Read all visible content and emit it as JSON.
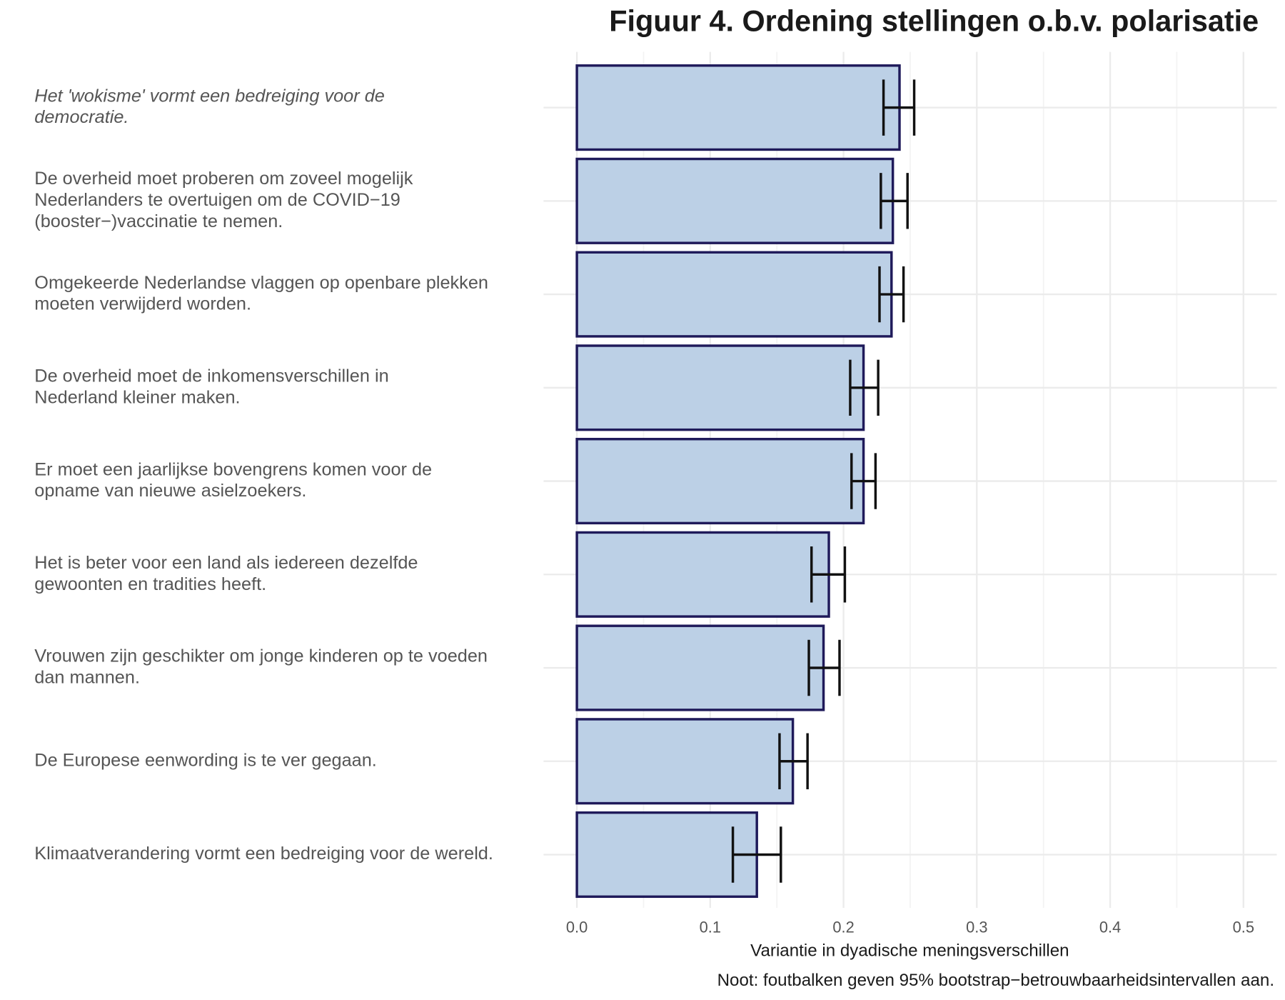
{
  "chart_data": {
    "type": "bar",
    "orientation": "horizontal",
    "title": "Figuur 4. Ordening stellingen o.b.v. polarisatie",
    "xlabel": "Variantie in dyadische meningsverschillen",
    "note": "Noot: foutbalken geven 95% bootstrap−betrouwbaarheidsintervallen aan.",
    "categories": [
      [
        "Het 'wokisme' vormt een bedreiging voor de",
        "democratie."
      ],
      [
        "De overheid moet proberen om zoveel mogelijk",
        "Nederlanders te overtuigen om de COVID−19",
        "(booster−)vaccinatie te nemen."
      ],
      [
        "Omgekeerde Nederlandse vlaggen op openbare plekken",
        "moeten verwijderd worden."
      ],
      [
        "De overheid moet de inkomensverschillen in",
        "Nederland kleiner maken."
      ],
      [
        "Er moet een jaarlijkse bovengrens komen voor de",
        "opname van nieuwe asielzoekers."
      ],
      [
        "Het is beter voor een land als iedereen dezelfde",
        "gewoonten en tradities heeft."
      ],
      [
        "Vrouwen zijn geschikter om jonge kinderen op te voeden",
        "dan mannen."
      ],
      [
        "De Europese eenwording is te ver gegaan."
      ],
      [
        "Klimaatverandering vormt een bedreiging voor de wereld."
      ]
    ],
    "italic_category": 0,
    "values": [
      0.242,
      0.237,
      0.236,
      0.215,
      0.215,
      0.189,
      0.185,
      0.162,
      0.135
    ],
    "lower": [
      0.23,
      0.228,
      0.227,
      0.205,
      0.206,
      0.176,
      0.174,
      0.152,
      0.117
    ],
    "upper": [
      0.253,
      0.248,
      0.245,
      0.226,
      0.224,
      0.201,
      0.197,
      0.173,
      0.153
    ],
    "color": "#bcd0e6",
    "edgecolor": "#1f1a5a",
    "xlim": [
      -0.025,
      0.525
    ],
    "xticks": [
      {
        "value": 0,
        "label": "0.0"
      },
      0.1,
      0.2,
      0.3,
      0.4,
      0.5
    ],
    "minor_xticks": [
      0.05,
      0.15,
      0.25,
      0.35,
      0.45
    ],
    "grid": true
  }
}
